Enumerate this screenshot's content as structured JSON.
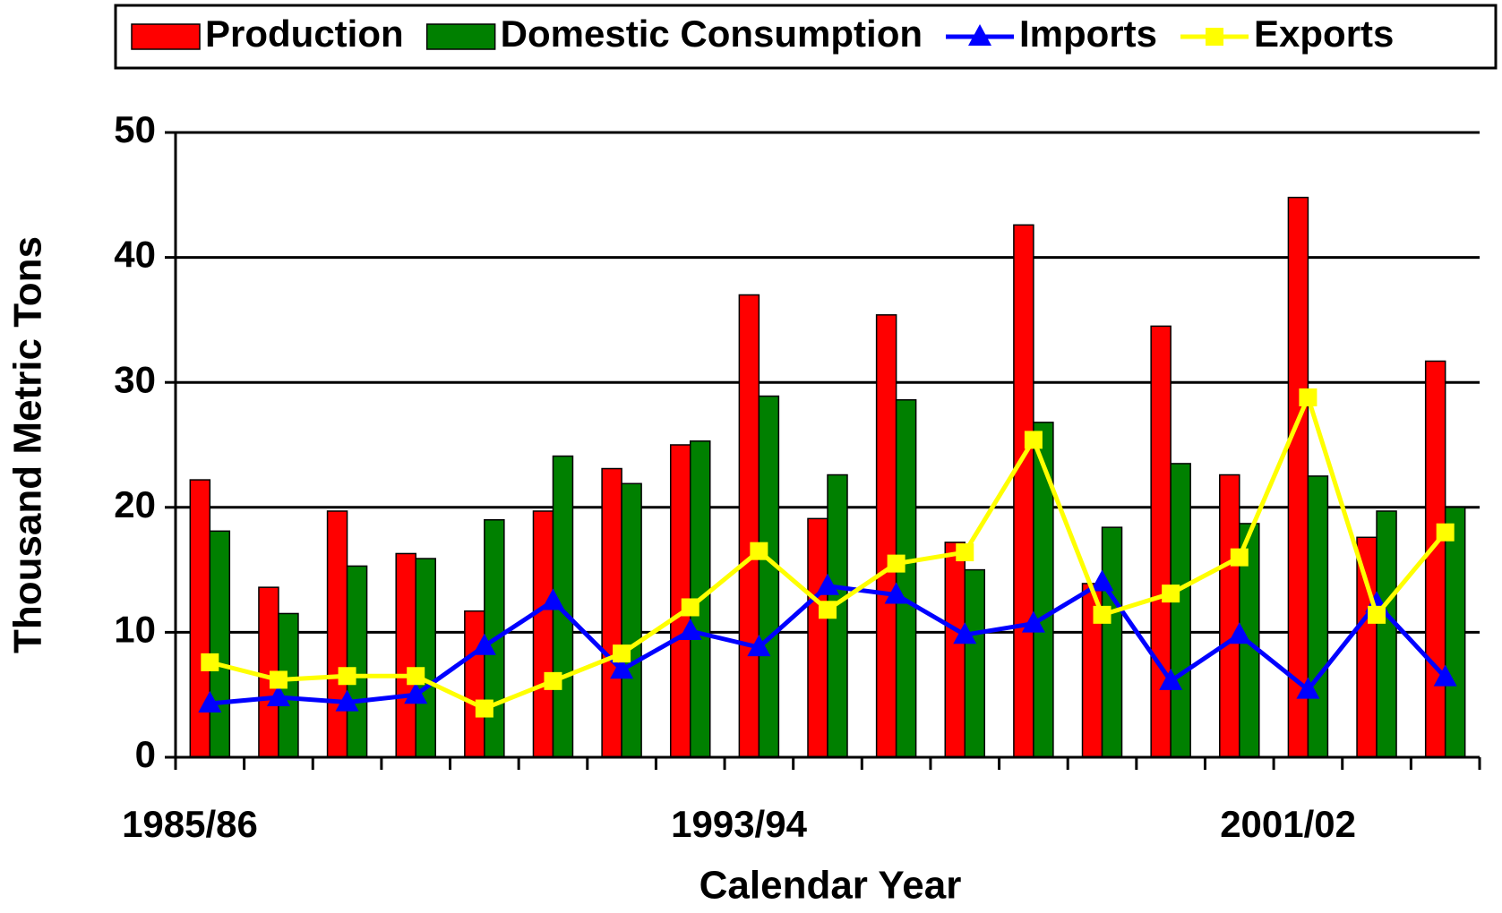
{
  "chart_data": {
    "type": "bar",
    "x_label": "Calendar Year",
    "y_label": "Thousand Metric Tons",
    "categories": [
      "1985/86",
      null,
      null,
      null,
      null,
      null,
      null,
      null,
      "1993/94",
      null,
      null,
      null,
      null,
      null,
      null,
      null,
      "2001/02",
      null,
      null
    ],
    "series": [
      {
        "name": "Production",
        "type": "bar",
        "color": "#ff0000",
        "values": [
          22.2,
          13.6,
          19.7,
          16.3,
          11.7,
          19.7,
          23.1,
          25.0,
          37.0,
          19.1,
          35.4,
          17.2,
          42.6,
          13.9,
          34.5,
          22.6,
          44.8,
          17.6,
          31.7
        ]
      },
      {
        "name": "Domestic Consumption",
        "type": "bar",
        "color": "#008000",
        "values": [
          18.1,
          11.5,
          15.3,
          15.9,
          19.0,
          24.1,
          21.9,
          25.3,
          28.9,
          22.6,
          28.6,
          15.0,
          26.8,
          18.4,
          23.5,
          18.7,
          22.5,
          19.7,
          20.0
        ]
      },
      {
        "name": "Imports",
        "type": "line",
        "marker": "triangle",
        "color": "#0000ff",
        "values": [
          4.3,
          4.8,
          4.4,
          5.0,
          8.9,
          12.5,
          7.0,
          10.1,
          8.8,
          13.7,
          13.0,
          9.8,
          10.7,
          14.0,
          6.1,
          9.8,
          5.4,
          12.3,
          6.4
        ]
      },
      {
        "name": "Exports",
        "type": "line",
        "marker": "square",
        "color": "#ffff00",
        "values": [
          7.6,
          6.2,
          6.5,
          6.5,
          3.9,
          6.1,
          8.3,
          12.0,
          16.5,
          11.8,
          15.5,
          16.4,
          25.4,
          11.4,
          13.1,
          16.0,
          28.8,
          11.4,
          18.0
        ]
      }
    ],
    "ylim": [
      0,
      50
    ],
    "yticks": [
      0,
      10,
      20,
      30,
      40,
      50
    ],
    "grid": true,
    "legend": "top"
  }
}
